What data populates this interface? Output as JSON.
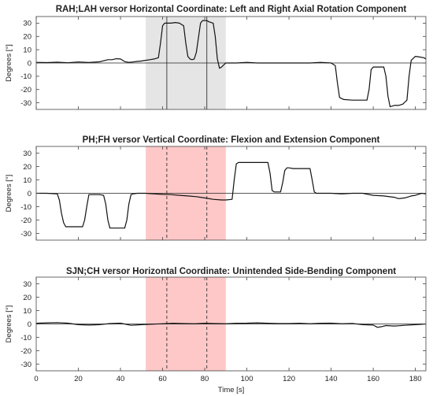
{
  "chart_data": [
    {
      "type": "line",
      "title": "RAH;LAH versor Horizontal Coordinate: Left and Right Axial Rotation Component",
      "ylabel": "Degrees [°]",
      "xlabel": "",
      "xlim": [
        0,
        185
      ],
      "ylim": [
        -35,
        35
      ],
      "yticks": [
        -30,
        -20,
        -10,
        0,
        10,
        20,
        30
      ],
      "xticks": [
        0,
        20,
        40,
        60,
        80,
        100,
        120,
        140,
        160,
        180
      ],
      "grid": false,
      "highlight": {
        "x_start": 52,
        "x_end": 90,
        "color": "#e5e5e5"
      },
      "markers": {
        "x": [
          62,
          81
        ],
        "style": "solid"
      },
      "series": [
        {
          "x": [
            0,
            5,
            10,
            15,
            20,
            25,
            30,
            34,
            36,
            38,
            40,
            42,
            44,
            46,
            48,
            50,
            52,
            54,
            56,
            58,
            59,
            60,
            61,
            62,
            64,
            66,
            68,
            70,
            71,
            72,
            73,
            74,
            75,
            76,
            78,
            79,
            80,
            81,
            82,
            84,
            85,
            86,
            87,
            88,
            90,
            95,
            100,
            105,
            110,
            115,
            120,
            125,
            130,
            135,
            140,
            142,
            143,
            144,
            146,
            150,
            155,
            157,
            158,
            159,
            160,
            162,
            164,
            165,
            166,
            167,
            168,
            170,
            172,
            174,
            176,
            177,
            178,
            180,
            182,
            184,
            185
          ],
          "y": [
            0.5,
            0.3,
            0.6,
            0.2,
            0.8,
            0.4,
            0.9,
            2.5,
            2.5,
            3.2,
            3.0,
            1.0,
            0.5,
            0.8,
            1.2,
            1.5,
            2.0,
            2.5,
            3.0,
            4.0,
            15,
            28,
            30,
            30,
            30,
            30.5,
            30,
            28,
            15,
            5,
            3,
            2.5,
            3,
            8,
            30,
            32,
            32,
            32,
            31,
            30,
            20,
            3,
            -4,
            -3,
            0,
            0,
            0.5,
            0,
            0,
            0,
            0,
            0,
            0,
            0.5,
            0,
            -2,
            -15,
            -26,
            -27.5,
            -28,
            -28,
            -28,
            -20,
            -5,
            -3,
            -3,
            -3,
            -3,
            -10,
            -25,
            -33,
            -32,
            -32,
            -31,
            -28,
            -10,
            2,
            5,
            4.5,
            4,
            3
          ]
        }
      ]
    },
    {
      "type": "line",
      "title": "PH;FH versor Vertical Coordinate: Flexion and Extension Component",
      "ylabel": "Degrees [°]",
      "xlabel": "",
      "xlim": [
        0,
        185
      ],
      "ylim": [
        -35,
        35
      ],
      "yticks": [
        -30,
        -20,
        -10,
        0,
        10,
        20,
        30
      ],
      "xticks": [
        0,
        20,
        40,
        60,
        80,
        100,
        120,
        140,
        160,
        180
      ],
      "grid": false,
      "highlight": {
        "x_start": 52,
        "x_end": 90,
        "color": "#ffc8c8"
      },
      "markers": {
        "x": [
          62,
          81
        ],
        "style": "dashed"
      },
      "series": [
        {
          "x": [
            0,
            5,
            10,
            11,
            12,
            13,
            14,
            16,
            18,
            20,
            22,
            23,
            24,
            25,
            26,
            28,
            30,
            32,
            33,
            34,
            35,
            36,
            38,
            40,
            42,
            43,
            44,
            45,
            46,
            48,
            52,
            56,
            60,
            64,
            68,
            72,
            76,
            80,
            84,
            88,
            90,
            93,
            94,
            95,
            96,
            97,
            98,
            100,
            102,
            104,
            106,
            108,
            110,
            111,
            112,
            113,
            114,
            116,
            117,
            118,
            119,
            120,
            122,
            124,
            126,
            128,
            130,
            131,
            132,
            133,
            134,
            136,
            140,
            145,
            150,
            155,
            160,
            165,
            170,
            172,
            175,
            178,
            180,
            183,
            185
          ],
          "y": [
            0,
            0,
            -0.5,
            -5,
            -15,
            -22,
            -25,
            -25,
            -25,
            -25,
            -25,
            -20,
            -10,
            -1,
            -1,
            -1,
            -1,
            -1.5,
            -8,
            -20,
            -26,
            -26,
            -26,
            -26,
            -26,
            -20,
            -8,
            -1,
            -0.5,
            0,
            0,
            -0.5,
            -0.8,
            -1,
            -1.5,
            -2,
            -2.5,
            -3.5,
            -4.5,
            -5,
            -5,
            -4.5,
            10,
            22,
            23,
            23,
            23,
            23,
            23,
            23,
            23,
            23,
            23,
            15,
            2,
            1,
            1,
            1,
            8,
            17,
            19,
            19,
            18.5,
            18.5,
            18.5,
            18.5,
            18.5,
            10,
            1,
            0,
            0,
            0,
            0,
            -0.5,
            0,
            0,
            -1.5,
            -2,
            -3,
            -4,
            -3.5,
            -2,
            -1.5,
            0,
            -0.5
          ]
        }
      ]
    },
    {
      "type": "line",
      "title": "SJN;CH versor Horizontal Coordinate: Unintended Side-Bending Component",
      "ylabel": "Degrees [°]",
      "xlabel": "Time [s]",
      "xlim": [
        0,
        185
      ],
      "ylim": [
        -35,
        35
      ],
      "yticks": [
        -30,
        -20,
        -10,
        0,
        10,
        20,
        30
      ],
      "xticks": [
        0,
        20,
        40,
        60,
        80,
        100,
        120,
        140,
        160,
        180
      ],
      "grid": false,
      "highlight": {
        "x_start": 52,
        "x_end": 90,
        "color": "#ffc8c8"
      },
      "markers": {
        "x": [
          62,
          81
        ],
        "style": "dashed"
      },
      "series": [
        {
          "x": [
            0,
            5,
            10,
            15,
            20,
            25,
            30,
            35,
            40,
            45,
            50,
            55,
            60,
            65,
            70,
            75,
            80,
            85,
            90,
            95,
            100,
            105,
            110,
            115,
            120,
            125,
            130,
            135,
            140,
            145,
            150,
            155,
            160,
            162,
            164,
            166,
            170,
            175,
            180,
            185
          ],
          "y": [
            0.5,
            0.8,
            1.0,
            0.6,
            -0.5,
            -0.8,
            -0.5,
            0.3,
            0.6,
            -1.0,
            -0.5,
            -0.2,
            0.2,
            0.5,
            0.3,
            0.2,
            0.5,
            0.3,
            0.2,
            0.5,
            0.6,
            0.8,
            0.5,
            0.3,
            0.3,
            0.5,
            0.2,
            0.5,
            0.6,
            0.2,
            0.4,
            -0.5,
            -0.8,
            -2.5,
            -2.0,
            -1.2,
            -1.5,
            -1.0,
            -0.5,
            0
          ]
        }
      ]
    }
  ]
}
